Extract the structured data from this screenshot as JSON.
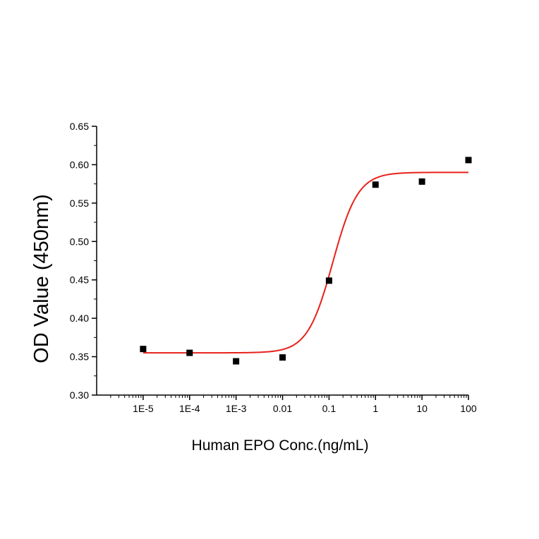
{
  "chart_data": {
    "type": "scatter",
    "title": "",
    "xlabel": "Human EPO Conc.(ng/mL)",
    "ylabel": "OD Value (450nm)",
    "x_scale": "log",
    "xlim": [
      1e-06,
      100
    ],
    "ylim": [
      0.3,
      0.65
    ],
    "x_ticks": [
      1e-05,
      0.0001,
      0.001,
      0.01,
      0.1,
      1,
      10,
      100
    ],
    "x_tick_labels": [
      "1E-5",
      "1E-4",
      "1E-3",
      "0.01",
      "0.1",
      "1",
      "10",
      "100"
    ],
    "y_ticks": [
      0.3,
      0.35,
      0.4,
      0.45,
      0.5,
      0.55,
      0.6,
      0.65
    ],
    "y_tick_labels": [
      "0.30",
      "0.35",
      "0.40",
      "0.45",
      "0.50",
      "0.55",
      "0.60",
      "0.65"
    ],
    "grid": false,
    "legend": "none",
    "series": [
      {
        "type": "scatter",
        "color": "#000000",
        "x": [
          1e-05,
          0.0001,
          0.001,
          0.01,
          0.1,
          1,
          10,
          100
        ],
        "y": [
          0.36,
          0.355,
          0.344,
          0.349,
          0.449,
          0.574,
          0.578,
          0.606
        ]
      },
      {
        "type": "line",
        "fit": "four-parameter logistic",
        "color": "#e8211b",
        "bottom": 0.355,
        "top": 0.59,
        "ec50": 0.12,
        "hill": 1.6
      }
    ]
  }
}
